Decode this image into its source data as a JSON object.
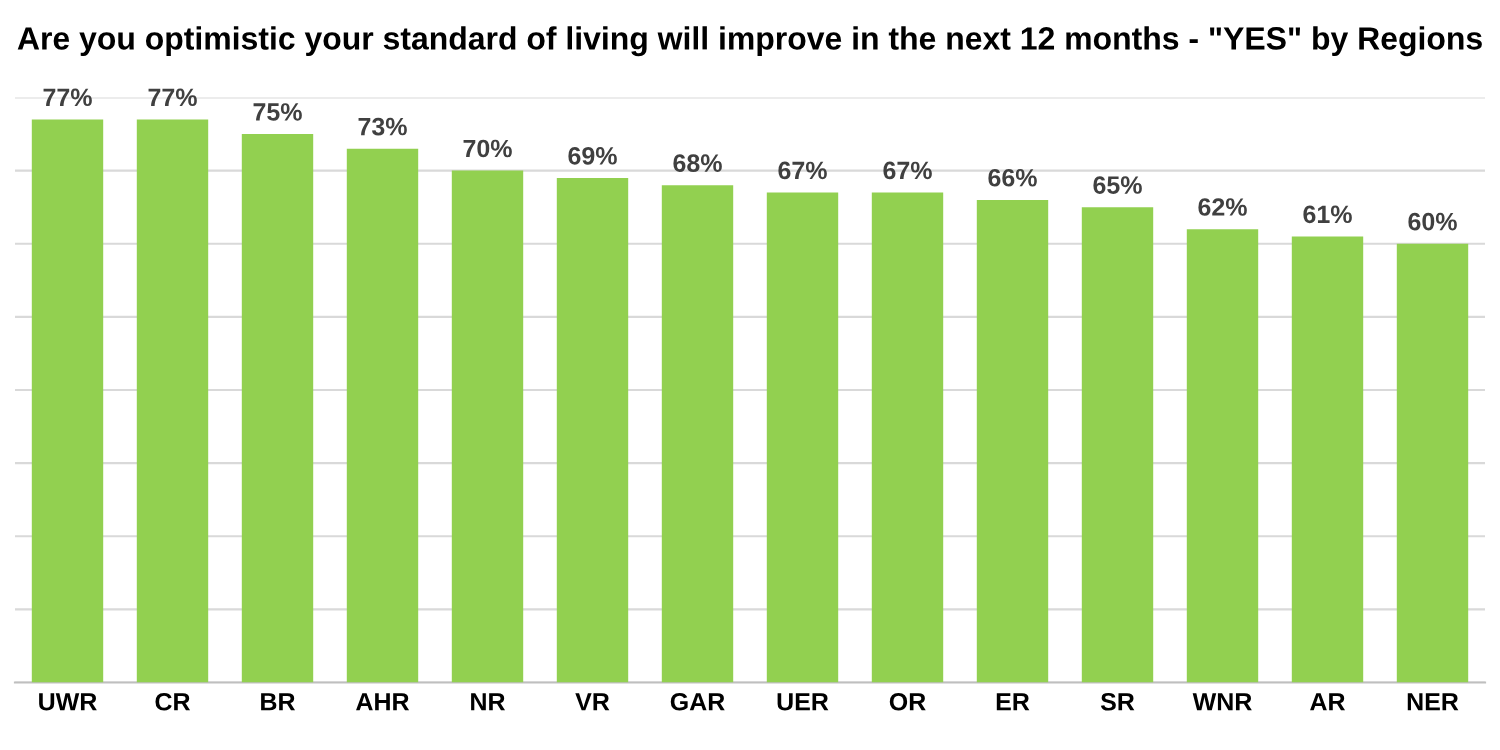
{
  "chart_data": {
    "type": "bar",
    "title": "Are you optimistic your standard of living will improve in the next 12 months - \"YES\" by Regions",
    "categories": [
      "UWR",
      "CR",
      "BR",
      "AHR",
      "NR",
      "VR",
      "GAR",
      "UER",
      "OR",
      "ER",
      "SR",
      "WNR",
      "AR",
      "NER"
    ],
    "values": [
      77,
      77,
      75,
      73,
      70,
      69,
      68,
      67,
      67,
      66,
      65,
      62,
      61,
      60
    ],
    "value_labels": [
      "77%",
      "77%",
      "75%",
      "73%",
      "70%",
      "69%",
      "68%",
      "67%",
      "67%",
      "66%",
      "65%",
      "62%",
      "61%",
      "60%"
    ],
    "color": "#92d050",
    "ylim": [
      0,
      80
    ],
    "yticks": [
      0,
      10,
      20,
      30,
      40,
      50,
      60,
      70,
      80
    ],
    "tick_labels": "x",
    "grid": "y",
    "legend": false
  }
}
